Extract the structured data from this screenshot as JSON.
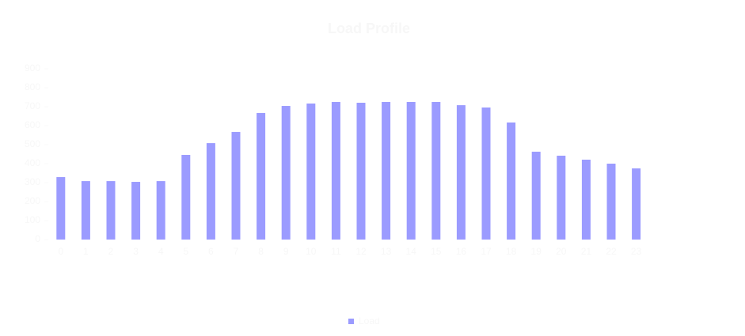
{
  "chart_data": {
    "type": "bar",
    "title": "Load Profile",
    "categories": [
      "0",
      "1",
      "2",
      "3",
      "4",
      "5",
      "6",
      "7",
      "8",
      "9",
      "10",
      "11",
      "12",
      "13",
      "14",
      "15",
      "16",
      "17",
      "18",
      "19",
      "20",
      "21",
      "22",
      "23"
    ],
    "series": [
      {
        "name": "Load",
        "color": "#9b9bff",
        "values": [
          329,
          308,
          308,
          304,
          308,
          446,
          508,
          567,
          667,
          704,
          717,
          725,
          721,
          725,
          725,
          725,
          708,
          696,
          617,
          463,
          442,
          421,
          400,
          375
        ]
      }
    ],
    "ylim": [
      0,
      900
    ],
    "yticks": [
      0,
      100,
      200,
      300,
      400,
      500,
      600,
      700,
      800,
      900
    ]
  }
}
